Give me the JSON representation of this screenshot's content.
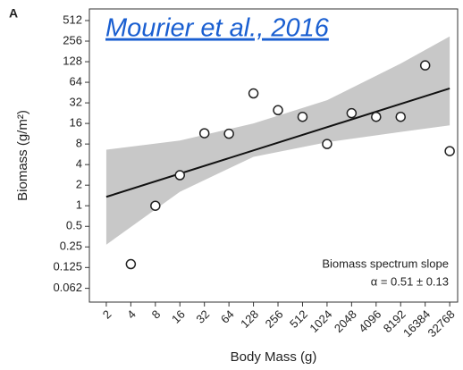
{
  "chart_data": {
    "type": "scatter",
    "panel_label": "A",
    "link_text": "Mourier et al., 2016",
    "xlabel": "Body Mass (g)",
    "ylabel": "Biomass (g/m²)",
    "annotation": [
      "Biomass spectrum slope",
      "α = 0.51 ± 0.13"
    ],
    "log_base": 2,
    "xlim": [
      1.24,
      41000
    ],
    "ylim": [
      0.039,
      757
    ],
    "xticks": [
      2,
      4,
      8,
      16,
      32,
      64,
      128,
      256,
      512,
      1024,
      2048,
      4096,
      8192,
      16384,
      32768
    ],
    "yticks": [
      512,
      256,
      128,
      64,
      32,
      16,
      8,
      4,
      2,
      1,
      0.5,
      0.25,
      0.125,
      0.062
    ],
    "x": [
      4,
      8,
      16,
      32,
      64,
      128,
      256,
      512,
      1024,
      2048,
      4096,
      8192,
      16384,
      32768
    ],
    "values": [
      0.14,
      1,
      2.8,
      11.5,
      11.3,
      44,
      25,
      20,
      8,
      22.6,
      20,
      20,
      113,
      6.3
    ],
    "fit": {
      "x": [
        2,
        32768
      ],
      "values": [
        1.35,
        52
      ],
      "color": "#111111"
    },
    "band": {
      "x": [
        2,
        16,
        128,
        1024,
        8192,
        32768
      ],
      "lower": [
        0.27,
        1.6,
        5.2,
        8.5,
        12,
        15
      ],
      "upper": [
        6.6,
        9,
        16,
        35,
        120,
        300
      ],
      "color": "#c8c8c8"
    }
  }
}
